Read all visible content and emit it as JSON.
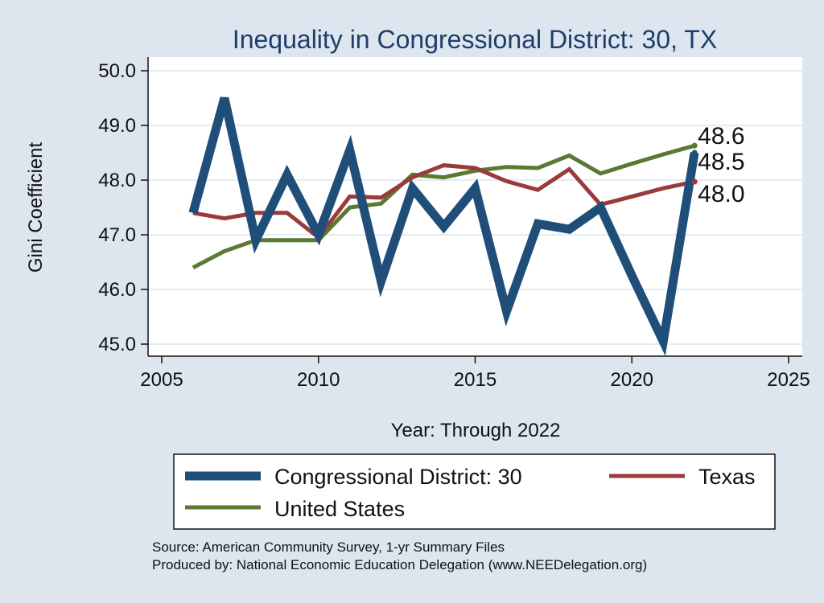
{
  "chart_data": {
    "type": "line",
    "title": "Inequality in Congressional District:  30, TX",
    "xlabel": "Year: Through 2022",
    "ylabel": "Gini Coefficient",
    "xlim": [
      2005,
      2025
    ],
    "ylim": [
      44.8,
      50.2
    ],
    "xticks": [
      2005,
      2010,
      2015,
      2020,
      2025
    ],
    "yticks": [
      45.0,
      46.0,
      47.0,
      48.0,
      49.0,
      50.0
    ],
    "grid": true,
    "x": [
      2006,
      2007,
      2008,
      2009,
      2010,
      2011,
      2012,
      2013,
      2014,
      2015,
      2016,
      2017,
      2018,
      2019,
      2020,
      2021,
      2022
    ],
    "series": [
      {
        "name": "Congressional District:  30",
        "color": "#1f4e79",
        "values": [
          47.4,
          49.5,
          46.9,
          48.1,
          47.0,
          48.55,
          46.15,
          47.85,
          47.15,
          47.85,
          45.6,
          47.2,
          47.1,
          47.5,
          46.25,
          45.05,
          48.5
        ],
        "end_label": "48.5"
      },
      {
        "name": "Texas",
        "color": "#9b3a3a",
        "values": [
          47.4,
          47.3,
          47.4,
          47.4,
          46.95,
          47.7,
          47.68,
          48.05,
          48.27,
          48.22,
          47.98,
          47.82,
          48.2,
          47.55,
          47.7,
          47.85,
          47.97
        ],
        "end_label": "48.0"
      },
      {
        "name": "United States",
        "color": "#5a7a32",
        "values": [
          46.4,
          46.7,
          46.9,
          46.9,
          46.9,
          47.5,
          47.57,
          48.1,
          48.05,
          48.17,
          48.24,
          48.22,
          48.45,
          48.12,
          48.3,
          48.47,
          48.63
        ],
        "end_label": "48.6"
      }
    ],
    "legend": {
      "placement": "bottom",
      "entries": [
        "Congressional District:  30",
        "Texas",
        "United States"
      ]
    },
    "source_lines": [
      "Source: American Community Survey, 1-yr Summary Files",
      "Produced by: National Economic Education Delegation (www.NEEDelegation.org)"
    ]
  },
  "colors": {
    "background": "#dde6ee",
    "plot_background": "#ffffff",
    "grid": "#e4ebf1",
    "title": "#1f3d6b"
  }
}
